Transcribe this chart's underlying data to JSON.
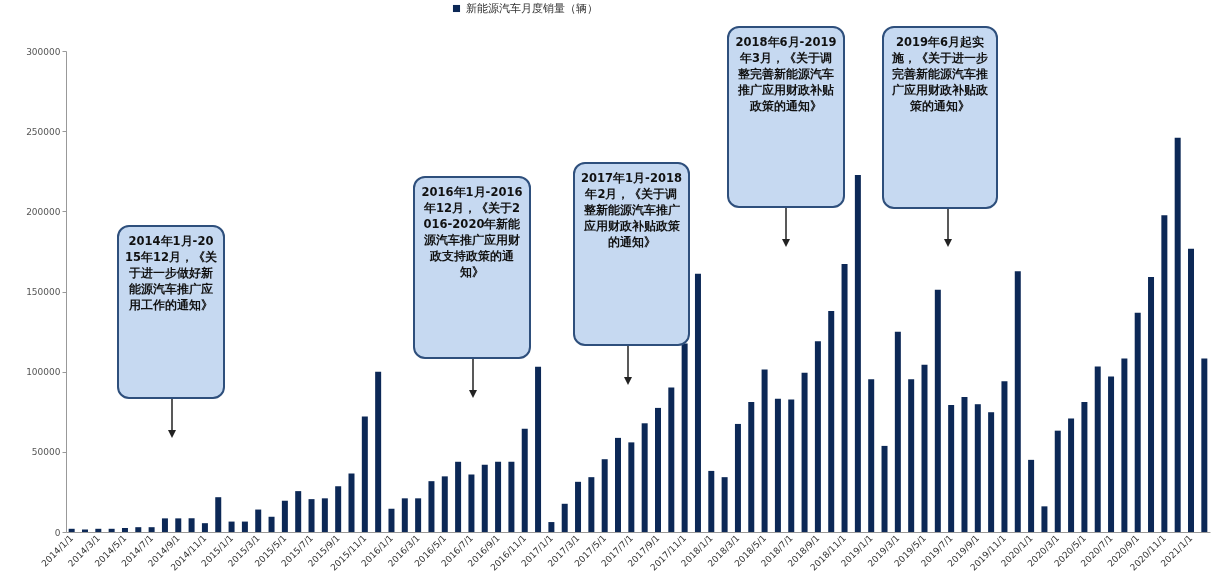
{
  "chart_data": {
    "type": "bar",
    "categories": [
      "2014/1/1",
      null,
      "2014/3/1",
      null,
      "2014/5/1",
      null,
      "2014/7/1",
      null,
      "2014/9/1",
      null,
      "2014/11/1",
      null,
      "2015/1/1",
      null,
      "2015/3/1",
      null,
      "2015/5/1",
      null,
      "2015/7/1",
      null,
      "2015/9/1",
      null,
      "2015/11/1",
      null,
      "2016/1/1",
      null,
      "2016/3/1",
      null,
      "2016/5/1",
      null,
      "2016/7/1",
      null,
      "2016/9/1",
      null,
      "2016/11/1",
      null,
      "2017/1/1",
      null,
      "2017/3/1",
      null,
      "2017/5/1",
      null,
      "2017/7/1",
      null,
      "2017/9/1",
      null,
      "2017/11/1",
      null,
      "2018/1/1",
      null,
      "2018/3/1",
      null,
      "2018/5/1",
      null,
      "2018/7/1",
      null,
      "2018/9/1",
      null,
      "2018/11/1",
      null,
      "2019/1/1",
      null,
      "2019/3/1",
      null,
      "2019/5/1",
      null,
      "2019/7/1",
      null,
      "2019/9/1",
      null,
      "2019/11/1",
      null,
      "2020/1/1",
      null,
      "2020/3/1",
      null,
      "2020/5/1",
      null,
      "2020/7/1",
      null,
      "2020/9/1",
      null,
      "2020/11/1",
      null,
      "2021/1/1",
      null
    ],
    "series": [
      {
        "name": "新能源汽车月度销量（辆）",
        "color": "#0c2856",
        "values": [
          2000,
          1500,
          2000,
          2000,
          2500,
          3000,
          3000,
          8500,
          8500,
          8500,
          5500,
          21700,
          6500,
          6500,
          14000,
          9500,
          19500,
          25500,
          20500,
          21000,
          28500,
          36500,
          72000,
          100000,
          14500,
          21000,
          21000,
          31700,
          34700,
          43800,
          35800,
          42000,
          43800,
          43800,
          64400,
          103000,
          6200,
          17600,
          31300,
          34200,
          45400,
          58700,
          55900,
          67800,
          77400,
          90200,
          117600,
          161000,
          38100,
          34200,
          67400,
          81100,
          101400,
          83100,
          82600,
          99300,
          119000,
          137900,
          167100,
          222600,
          95200,
          53700,
          124900,
          95200,
          104300,
          151100,
          79200,
          84200,
          79700,
          74700,
          94100,
          162600,
          45000,
          16000,
          63200,
          70800,
          81100,
          103200,
          97000,
          108200,
          136800,
          159100,
          197500,
          245900,
          176700,
          108200
        ]
      }
    ],
    "ylim": [
      0,
      300000
    ],
    "yticks": [
      0,
      50000,
      100000,
      150000,
      200000,
      250000,
      300000
    ],
    "legend": "top",
    "annotations": [
      "2014年1月-2015年12月，《关于进一步做好新能源汽车推广应用工作的通知》",
      "2016年1月-2016年12月，《关于2016-2020年新能源汽车推广应用财政支持政策的通知》",
      "2017年1月-2018年2月，《关于调整新能源汽车推广应用财政补贴政策的通知》",
      "2018年6月-2019年3月，《关于调整完善新能源汽车推广应用财政补贴政策的通知》",
      "2019年6月起实施，《关于进一步完善新能源汽车推广应用财政补贴政策的通知》"
    ]
  }
}
